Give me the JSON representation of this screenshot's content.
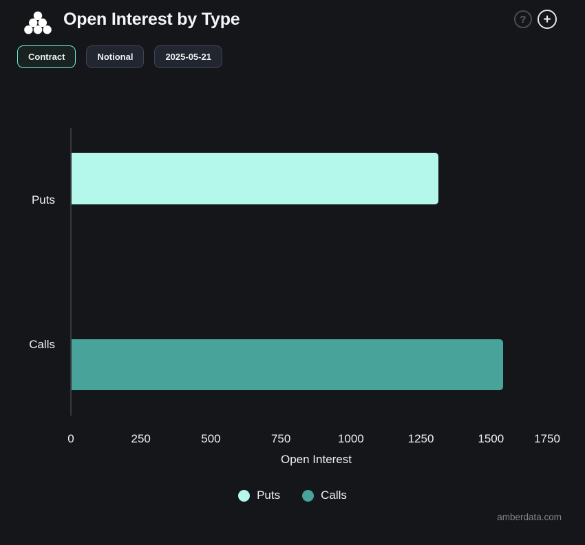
{
  "header": {
    "title": "Open Interest by Type",
    "help_glyph": "?",
    "add_glyph": "+"
  },
  "toolbar": {
    "buttons": [
      {
        "label": "Contract",
        "active": true
      },
      {
        "label": "Notional",
        "active": false
      },
      {
        "label": "2025-05-21",
        "active": false
      }
    ]
  },
  "chart_data": {
    "type": "bar",
    "orientation": "horizontal",
    "title": "Open Interest by Type",
    "categories": [
      "Puts",
      "Calls"
    ],
    "values": [
      1310,
      1540
    ],
    "colors": [
      "#b3f8ea",
      "#48a49a"
    ],
    "xlabel": "Open Interest",
    "xticks": [
      0,
      250,
      500,
      750,
      1000,
      1250,
      1500,
      1750
    ],
    "xlim": [
      0,
      1750
    ],
    "grid": false,
    "legend": [
      {
        "label": "Puts",
        "color": "#b3f8ea"
      },
      {
        "label": "Calls",
        "color": "#48a49a"
      }
    ],
    "legend_position": "bottom"
  },
  "footer": {
    "watermark": "amberdata.com"
  },
  "colors": {
    "background": "#15161a",
    "accent": "#70ead1",
    "puts": "#b3f8ea",
    "calls": "#48a49a",
    "axis": "#35383e"
  }
}
